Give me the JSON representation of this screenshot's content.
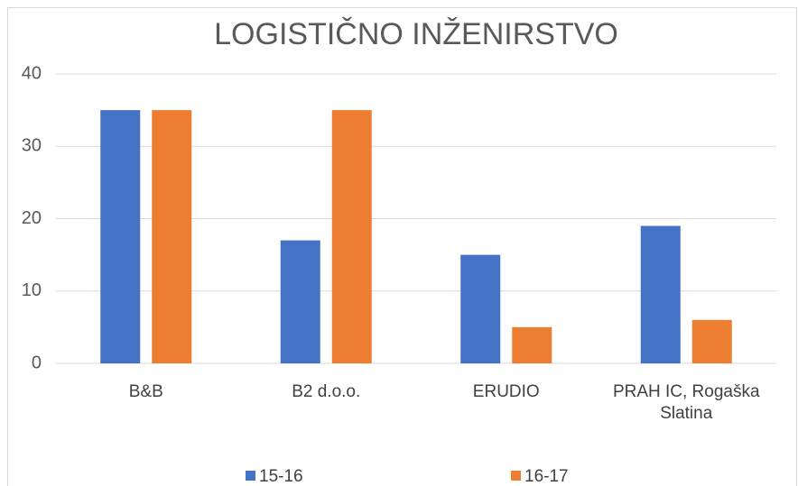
{
  "chart_data": {
    "type": "bar",
    "title": "LOGISTIČNO INŽENIRSTVO",
    "categories": [
      "B&B",
      "B2 d.o.o.",
      "ERUDIO",
      "PRAH IC, Rogaška Slatina"
    ],
    "series": [
      {
        "name": "15-16",
        "color": "#4472c4",
        "values": [
          35,
          17,
          15,
          19
        ]
      },
      {
        "name": "16-17",
        "color": "#ed7d31",
        "values": [
          35,
          35,
          5,
          6
        ]
      }
    ],
    "ylim": [
      0,
      40
    ],
    "yticks": [
      0,
      10,
      20,
      30,
      40
    ],
    "grid": true,
    "legend": "bottom"
  }
}
